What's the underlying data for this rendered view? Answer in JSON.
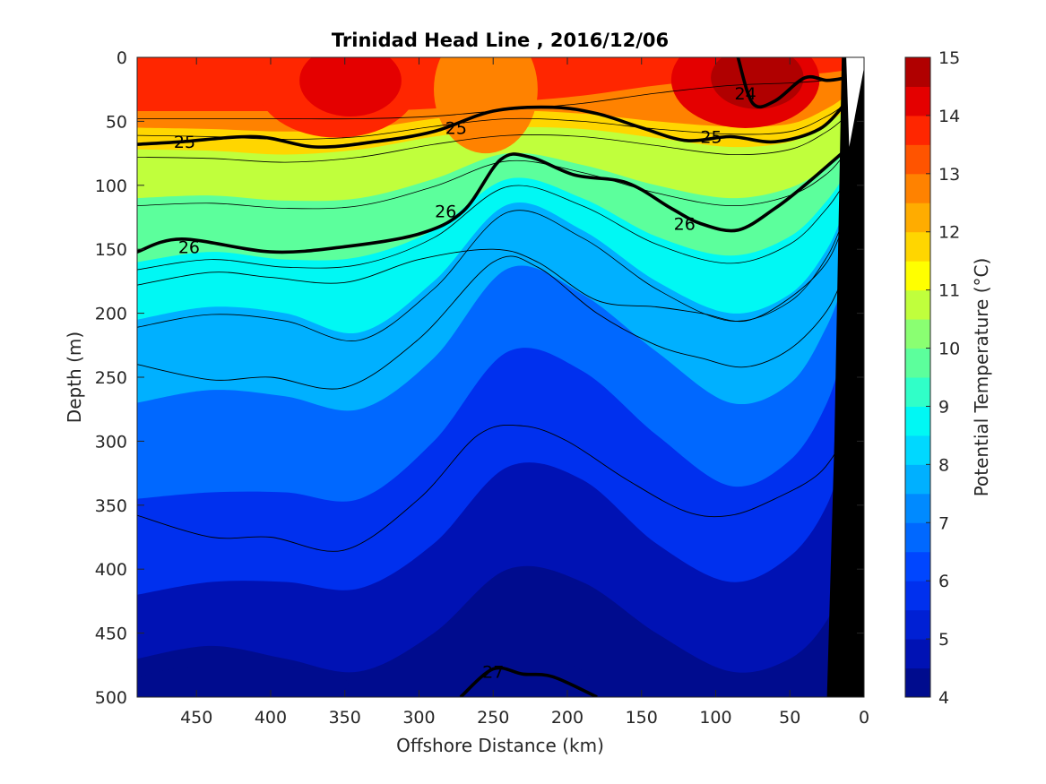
{
  "chart_data": {
    "type": "heatmap",
    "title": "Trinidad Head Line , 2016/12/06",
    "xlabel": "Offshore Distance (km)",
    "ylabel": "Depth (m)",
    "xlim": [
      490,
      0
    ],
    "ylim": [
      0,
      500
    ],
    "xticks": [
      450,
      400,
      350,
      300,
      250,
      200,
      150,
      100,
      50,
      0
    ],
    "yticks": [
      0,
      50,
      100,
      150,
      200,
      250,
      300,
      350,
      400,
      450,
      500
    ],
    "colorbar": {
      "label": "Potential Temperature (°C)",
      "range": [
        4,
        15
      ],
      "ticks": [
        4,
        5,
        6,
        7,
        8,
        9,
        10,
        11,
        12,
        13,
        14,
        15
      ],
      "bands": [
        {
          "from": 4.0,
          "to": 4.5,
          "color": "#000c8e"
        },
        {
          "from": 4.5,
          "to": 5.0,
          "color": "#0012b4"
        },
        {
          "from": 5.0,
          "to": 5.5,
          "color": "#0020d4"
        },
        {
          "from": 5.5,
          "to": 6.0,
          "color": "#0030ee"
        },
        {
          "from": 6.0,
          "to": 6.5,
          "color": "#0046ff"
        },
        {
          "from": 6.5,
          "to": 7.0,
          "color": "#0068ff"
        },
        {
          "from": 7.0,
          "to": 7.5,
          "color": "#008aff"
        },
        {
          "from": 7.5,
          "to": 8.0,
          "color": "#00b0ff"
        },
        {
          "from": 8.0,
          "to": 8.5,
          "color": "#00d8ff"
        },
        {
          "from": 8.5,
          "to": 9.0,
          "color": "#00f8f4"
        },
        {
          "from": 9.0,
          "to": 9.5,
          "color": "#30ffc8"
        },
        {
          "from": 9.5,
          "to": 10.0,
          "color": "#5cff9c"
        },
        {
          "from": 10.0,
          "to": 10.5,
          "color": "#8aff72"
        },
        {
          "from": 10.5,
          "to": 11.0,
          "color": "#c0ff3c"
        },
        {
          "from": 11.0,
          "to": 11.5,
          "color": "#ffff00"
        },
        {
          "from": 11.5,
          "to": 12.0,
          "color": "#ffd600"
        },
        {
          "from": 12.0,
          "to": 12.5,
          "color": "#ffac00"
        },
        {
          "from": 12.5,
          "to": 13.0,
          "color": "#ff8200"
        },
        {
          "from": 13.0,
          "to": 13.5,
          "color": "#ff5400"
        },
        {
          "from": 13.5,
          "to": 14.0,
          "color": "#ff2600"
        },
        {
          "from": 14.0,
          "to": 14.5,
          "color": "#e40000"
        },
        {
          "from": 14.5,
          "to": 15.0,
          "color": "#b00000"
        }
      ]
    },
    "temperature_depth_profile": {
      "distance_km": [
        490,
        440,
        390,
        340,
        290,
        240,
        190,
        140,
        90,
        50,
        25,
        12
      ],
      "isotherms": [
        {
          "temp": 13.0,
          "depth": [
            42,
            42,
            42,
            42,
            40,
            35,
            30,
            22,
            16,
            14,
            12,
            10
          ]
        },
        {
          "temp": 12.0,
          "depth": [
            55,
            56,
            58,
            56,
            48,
            42,
            44,
            50,
            54,
            52,
            40,
            30
          ]
        },
        {
          "temp": 11.0,
          "depth": [
            72,
            73,
            76,
            72,
            62,
            55,
            56,
            63,
            70,
            66,
            52,
            40
          ]
        },
        {
          "temp": 10.0,
          "depth": [
            110,
            108,
            112,
            110,
            95,
            75,
            84,
            100,
            110,
            102,
            85,
            68
          ]
        },
        {
          "temp": 9.0,
          "depth": [
            160,
            152,
            158,
            156,
            135,
            95,
            110,
            140,
            155,
            140,
            112,
            90
          ]
        },
        {
          "temp": 8.0,
          "depth": [
            205,
            195,
            200,
            215,
            175,
            115,
            135,
            175,
            200,
            185,
            150,
            115
          ]
        },
        {
          "temp": 7.0,
          "depth": [
            270,
            260,
            265,
            275,
            235,
            165,
            185,
            230,
            270,
            255,
            210,
            170
          ]
        },
        {
          "temp": 6.0,
          "depth": [
            345,
            340,
            340,
            345,
            300,
            230,
            245,
            295,
            335,
            315,
            270,
            220
          ]
        },
        {
          "temp": 5.0,
          "depth": [
            420,
            410,
            410,
            415,
            380,
            320,
            330,
            380,
            410,
            390,
            350,
            300
          ]
        },
        {
          "temp": 4.5,
          "depth": [
            470,
            460,
            470,
            480,
            450,
            400,
            410,
            450,
            480,
            470,
            440,
            400
          ]
        }
      ],
      "surface_warm_cores": [
        {
          "x_range": [
            410,
            300
          ],
          "depth_max": 40,
          "temp": 14.3
        },
        {
          "x_range": [
            130,
            30
          ],
          "depth_max": 35,
          "temp": 14.8
        }
      ],
      "cool_patch_near_surface": {
        "x_range": [
          290,
          220
        ],
        "depth_max": 50,
        "temp": 12.5
      }
    },
    "density_contours": [
      {
        "label": "24",
        "bold": true,
        "x": [
          85,
          75,
          60,
          40,
          25,
          12
        ],
        "y": [
          0,
          36,
          34,
          16,
          18,
          16
        ],
        "label_at": [
          80,
          28
        ]
      },
      {
        "label": "25",
        "bold": true,
        "x": [
          490,
          460,
          410,
          370,
          330,
          290,
          250,
          210,
          180,
          150,
          120,
          90,
          60,
          30,
          12
        ],
        "y": [
          68,
          66,
          62,
          70,
          66,
          58,
          42,
          39,
          44,
          55,
          65,
          62,
          66,
          56,
          35
        ],
        "label_at": [
          [
            458,
            66
          ],
          [
            275,
            55
          ],
          [
            103,
            62
          ]
        ]
      },
      {
        "label": "26",
        "bold": true,
        "x": [
          490,
          460,
          400,
          350,
          300,
          270,
          245,
          225,
          195,
          160,
          130,
          110,
          85,
          60,
          40,
          12
        ],
        "y": [
          152,
          142,
          152,
          148,
          138,
          120,
          80,
          78,
          92,
          98,
          118,
          130,
          135,
          118,
          100,
          72
        ],
        "label_at": [
          [
            455,
            148
          ],
          [
            282,
            120
          ],
          [
            121,
            130
          ]
        ]
      },
      {
        "label": "27",
        "bold": true,
        "x": [
          272,
          250,
          230,
          210,
          180
        ],
        "y": [
          500,
          478,
          482,
          484,
          500
        ],
        "label_at": [
          [
            250,
            480
          ]
        ]
      }
    ],
    "thin_contours": [
      {
        "x": [
          490,
          440,
          400,
          350,
          300,
          250,
          220,
          180,
          140,
          110,
          80,
          50,
          25,
          12
        ],
        "y": [
          178,
          168,
          172,
          176,
          158,
          150,
          160,
          190,
          195,
          200,
          206,
          188,
          160,
          125
        ]
      },
      {
        "x": [
          490,
          440,
          400,
          350,
          300,
          250,
          220,
          180,
          140,
          110,
          80,
          50,
          25,
          12
        ],
        "y": [
          240,
          252,
          250,
          258,
          220,
          160,
          164,
          200,
          225,
          235,
          242,
          228,
          198,
          165
        ]
      },
      {
        "x": [
          490,
          440,
          400,
          350,
          300,
          260,
          230,
          200,
          160,
          120,
          90,
          60,
          30,
          12
        ],
        "y": [
          358,
          375,
          375,
          385,
          345,
          295,
          288,
          300,
          330,
          355,
          358,
          345,
          325,
          295
        ]
      }
    ],
    "bottom_topography": {
      "color": "#000000",
      "x": [
        15,
        20,
        25,
        25,
        0,
        0
      ],
      "y": [
        0,
        300,
        500,
        500,
        500,
        0
      ]
    }
  }
}
